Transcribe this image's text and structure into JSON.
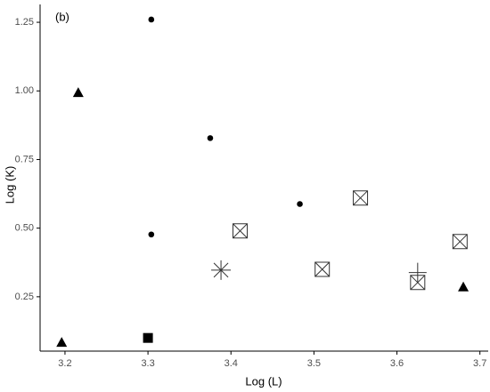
{
  "chart_data": {
    "type": "scatter",
    "annotation": "(b)",
    "x_label": "Log (L)",
    "y_label": "Log (K)",
    "xlim": [
      3.17,
      3.71
    ],
    "ylim": [
      0.052,
      1.315
    ],
    "xticks": [
      3.2,
      3.3,
      3.4,
      3.5,
      3.6,
      3.7
    ],
    "yticks": [
      0.25,
      {
        "value": 0.5,
        "label": "0.50"
      },
      0.75,
      {
        "value": 1,
        "label": "1.00"
      },
      1.25
    ],
    "grid": false,
    "series": [
      {
        "marker": "circle",
        "color": "#000000",
        "x": [
          3.304,
          3.375,
          3.483,
          3.304
        ],
        "y": [
          1.26,
          0.828,
          0.588,
          0.477
        ]
      },
      {
        "marker": "triangle",
        "color": "#000000",
        "x": [
          3.216,
          3.196,
          3.68
        ],
        "y": [
          0.994,
          0.084,
          0.286
        ]
      },
      {
        "marker": "square",
        "color": "#000000",
        "x": [
          3.3
        ],
        "y": [
          0.1
        ]
      },
      {
        "marker": "boxed-x",
        "color": "#333333",
        "x": [
          3.411,
          3.51,
          3.556,
          3.625,
          3.676
        ],
        "y": [
          0.49,
          0.35,
          0.61,
          0.302,
          0.451
        ]
      },
      {
        "marker": "asterisk",
        "color": "#333333",
        "x": [
          3.388
        ],
        "y": [
          0.347
        ]
      },
      {
        "marker": "plus",
        "color": "#333333",
        "x": [
          3.625
        ],
        "y": [
          0.338
        ]
      }
    ]
  }
}
